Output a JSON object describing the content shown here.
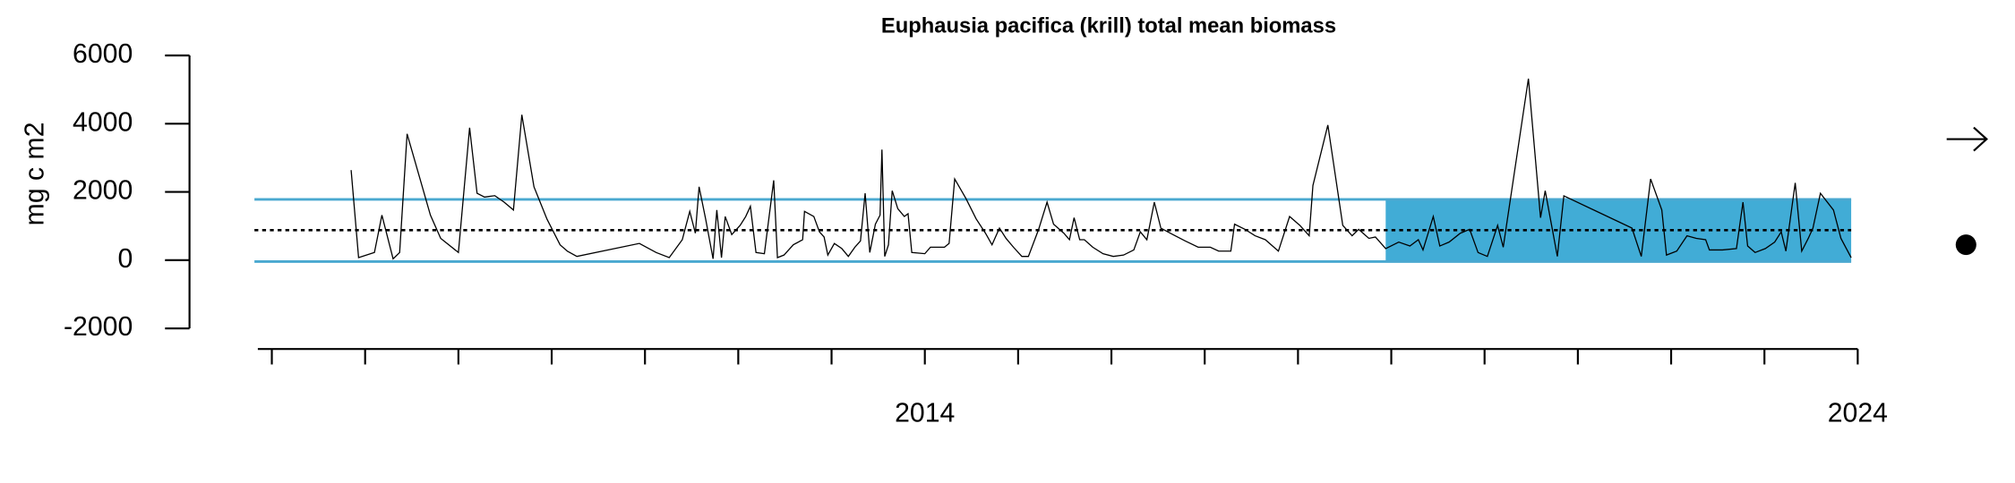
{
  "chart_data": {
    "type": "line",
    "title": "Euphausia pacifica (krill) total mean biomass",
    "ylabel": "mg c m2",
    "color": "#000000",
    "band_color": "#4aa8d0",
    "shade_color": "#41acd6",
    "mean": 880,
    "sd_upper": 1780,
    "sd_lower": -40,
    "shade_x": [
      2018.94,
      2023.93
    ],
    "xlim": [
      2006.85,
      2024
    ],
    "ylim": [
      -2000,
      6000
    ],
    "yticks": [
      -2000,
      0,
      2000,
      4000,
      6000
    ],
    "xticks": [
      {
        "value": 2007,
        "label": null
      },
      {
        "value": 2008,
        "label": null
      },
      {
        "value": 2009,
        "label": null
      },
      {
        "value": 2010,
        "label": null
      },
      {
        "value": 2011,
        "label": null
      },
      {
        "value": 2012,
        "label": null
      },
      {
        "value": 2013,
        "label": null
      },
      2014,
      {
        "value": 2015,
        "label": null
      },
      {
        "value": 2016,
        "label": null
      },
      {
        "value": 2017,
        "label": null
      },
      {
        "value": 2018,
        "label": null
      },
      {
        "value": 2019,
        "label": null
      },
      {
        "value": 2020,
        "label": null
      },
      {
        "value": 2021,
        "label": null
      },
      {
        "value": 2022,
        "label": null
      },
      {
        "value": 2023,
        "label": null
      },
      2024
    ],
    "x": [
      2007.85,
      2007.93,
      2008.1,
      2008.18,
      2008.3,
      2008.37,
      2008.45,
      2008.7,
      2008.81,
      2009.0,
      2009.12,
      2009.2,
      2009.28,
      2009.39,
      2009.49,
      2009.59,
      2009.68,
      2009.81,
      2009.95,
      2010.09,
      2010.17,
      2010.27,
      2010.94,
      2011.12,
      2011.26,
      2011.4,
      2011.48,
      2011.54,
      2011.58,
      2011.65,
      2011.73,
      2011.77,
      2011.82,
      2011.86,
      2011.93,
      2012.02,
      2012.08,
      2012.13,
      2012.19,
      2012.28,
      2012.38,
      2012.42,
      2012.49,
      2012.59,
      2012.69,
      2012.71,
      2012.81,
      2012.87,
      2012.92,
      2012.96,
      2013.03,
      2013.11,
      2013.18,
      2013.25,
      2013.31,
      2013.36,
      2013.41,
      2013.47,
      2013.52,
      2013.54,
      2013.57,
      2013.61,
      2013.65,
      2013.71,
      2013.78,
      2013.82,
      2013.86,
      2014.0,
      2014.06,
      2014.21,
      2014.26,
      2014.32,
      2014.44,
      2014.55,
      2014.65,
      2014.72,
      2014.8,
      2014.87,
      2014.95,
      2015.04,
      2015.11,
      2015.22,
      2015.31,
      2015.38,
      2015.49,
      2015.55,
      2015.6,
      2015.66,
      2015.71,
      2015.8,
      2015.91,
      2016.02,
      2016.13,
      2016.24,
      2016.31,
      2016.38,
      2016.46,
      2016.53,
      2016.66,
      2016.79,
      2016.93,
      2017.06,
      2017.15,
      2017.28,
      2017.32,
      2017.43,
      2017.54,
      2017.65,
      2017.79,
      2017.91,
      2018.02,
      2018.12,
      2018.16,
      2018.32,
      2018.48,
      2018.58,
      2018.65,
      2018.76,
      2018.83,
      2018.94,
      2019.08,
      2019.2,
      2019.29,
      2019.34,
      2019.45,
      2019.52,
      2019.62,
      2019.74,
      2019.84,
      2019.93,
      2020.03,
      2020.14,
      2020.2,
      2020.47,
      2020.6,
      2020.65,
      2020.78,
      2020.85,
      2021.58,
      2021.68,
      2021.78,
      2021.9,
      2021.95,
      2022.06,
      2022.17,
      2022.27,
      2022.37,
      2022.41,
      2022.55,
      2022.7,
      2022.77,
      2022.82,
      2022.9,
      2023.01,
      2023.11,
      2023.18,
      2023.23,
      2023.33,
      2023.4,
      2023.47,
      2023.52,
      2023.6,
      2023.74,
      2023.82,
      2023.93
    ],
    "values": [
      2640,
      75,
      225,
      1320,
      40,
      225,
      3700,
      1320,
      640,
      225,
      3880,
      1960,
      1850,
      1890,
      1700,
      1470,
      4260,
      2150,
      1200,
      450,
      260,
      110,
      490,
      225,
      75,
      600,
      1430,
      790,
      2150,
      1210,
      40,
      1470,
      75,
      1280,
      750,
      1020,
      1280,
      1580,
      225,
      190,
      2340,
      75,
      150,
      450,
      600,
      1430,
      1280,
      830,
      680,
      150,
      490,
      340,
      110,
      380,
      565,
      1960,
      225,
      1055,
      1320,
      3240,
      110,
      450,
      2035,
      1510,
      1280,
      1360,
      225,
      190,
      380,
      380,
      490,
      2380,
      1810,
      1210,
      790,
      450,
      940,
      640,
      380,
      110,
      110,
      905,
      1700,
      1055,
      790,
      600,
      1245,
      600,
      600,
      380,
      190,
      110,
      150,
      300,
      830,
      600,
      1700,
      940,
      750,
      565,
      380,
      380,
      265,
      265,
      1055,
      905,
      715,
      600,
      265,
      1280,
      1020,
      715,
      2190,
      3960,
      1020,
      715,
      905,
      640,
      680,
      340,
      530,
      415,
      600,
      300,
      1280,
      415,
      530,
      790,
      905,
      225,
      110,
      1020,
      380,
      5320,
      1245,
      2035,
      110,
      1885,
      940,
      110,
      2380,
      1470,
      150,
      265,
      715,
      640,
      600,
      300,
      300,
      340,
      1700,
      415,
      225,
      340,
      530,
      830,
      265,
      2265,
      265,
      640,
      940,
      1960,
      1470,
      640,
      75
    ]
  }
}
